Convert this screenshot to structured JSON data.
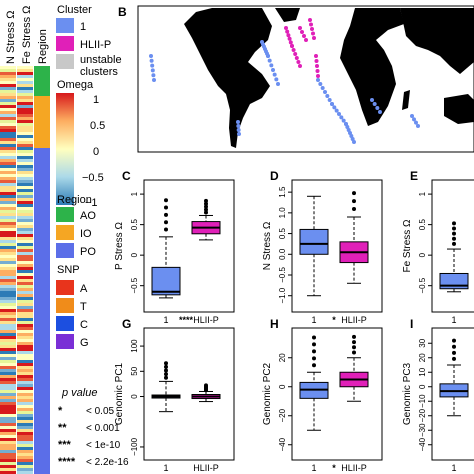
{
  "heatmap_headers": [
    "N Stress Ω",
    "Fe Stress Ω",
    "Region"
  ],
  "legend": {
    "cluster": {
      "title": "Cluster",
      "items": [
        {
          "label": "1",
          "color": "#6b8ff0"
        },
        {
          "label": "HLII-P",
          "color": "#e020b8"
        },
        {
          "label": "unstable clusters",
          "color": "#c8c8c8"
        }
      ]
    },
    "omega": {
      "title": "Omega",
      "ticks": [
        "1",
        "0.5",
        "0",
        "−0.5",
        "−1"
      ]
    },
    "region": {
      "title": "Region",
      "items": [
        {
          "label": "AO",
          "color": "#2db34a"
        },
        {
          "label": "IO",
          "color": "#f5a623"
        },
        {
          "label": "PO",
          "color": "#5b6ee8"
        }
      ]
    },
    "snp": {
      "title": "SNP",
      "items": [
        {
          "label": "A",
          "color": "#e8341c"
        },
        {
          "label": "T",
          "color": "#f08c1a"
        },
        {
          "label": "C",
          "color": "#1c4fe0"
        },
        {
          "label": "G",
          "color": "#7a2fd6"
        }
      ]
    },
    "pvalue": {
      "title": "p value",
      "items": [
        {
          "stars": "*",
          "text": "< 0.05"
        },
        {
          "stars": "**",
          "text": "< 0.001"
        },
        {
          "stars": "***",
          "text": "< 1e-10"
        },
        {
          "stars": "****",
          "text": "< 2.2e-16"
        }
      ]
    }
  },
  "panels": {
    "B": "B",
    "C": {
      "letter": "C",
      "ylabel": "P Stress Ω",
      "sig": "****",
      "ticks": [
        "1",
        "0.5",
        "0",
        "−0.5"
      ]
    },
    "D": {
      "letter": "D",
      "ylabel": "N Stress Ω",
      "sig": "*",
      "ticks": [
        "1.5",
        "1.0",
        "0.5",
        "0.0",
        "−0.5",
        "−1.0"
      ]
    },
    "E": {
      "letter": "E",
      "ylabel": "Fe Stress Ω",
      "sig": "**",
      "ticks": [
        "1",
        "0.5",
        "0",
        "−0.5"
      ]
    },
    "G": {
      "letter": "G",
      "ylabel": "Genomic PC1",
      "sig": "",
      "ticks": [
        "100",
        "50",
        "0",
        "−100"
      ]
    },
    "H": {
      "letter": "H",
      "ylabel": "Genomic PC2",
      "sig": "*",
      "ticks": [
        "20",
        "0",
        "−20",
        "−40"
      ]
    },
    "I": {
      "letter": "I",
      "ylabel": "Genomic PC3",
      "sig": "",
      "ticks": [
        "30",
        "20",
        "10",
        "0",
        "−10",
        "−20",
        "−30",
        "−40"
      ]
    }
  },
  "xcats": [
    "1",
    "HLII-P"
  ],
  "chart_data": [
    {
      "type": "box",
      "panel": "C",
      "ylabel": "P Stress Ω",
      "categories": [
        "1",
        "HLII-P"
      ],
      "series": [
        {
          "name": "1",
          "min": -0.7,
          "q1": -0.65,
          "median": -0.6,
          "q3": -0.2,
          "max": 0.3
        },
        {
          "name": "HLII-P",
          "min": 0.25,
          "q1": 0.35,
          "median": 0.45,
          "q3": 0.55,
          "max": 0.65
        }
      ]
    },
    {
      "type": "box",
      "panel": "D",
      "ylabel": "N Stress Ω",
      "categories": [
        "1",
        "HLII-P"
      ],
      "series": [
        {
          "name": "1",
          "min": -1.0,
          "q1": 0.0,
          "median": 0.25,
          "q3": 0.6,
          "max": 1.4
        },
        {
          "name": "HLII-P",
          "min": -0.7,
          "q1": -0.2,
          "median": 0.05,
          "q3": 0.3,
          "max": 0.9
        }
      ]
    },
    {
      "type": "box",
      "panel": "E",
      "ylabel": "Fe Stress Ω",
      "categories": [
        "1"
      ],
      "series": [
        {
          "name": "1",
          "min": -0.6,
          "q1": -0.55,
          "median": -0.5,
          "q3": -0.3,
          "max": 0.1
        }
      ]
    },
    {
      "type": "box",
      "panel": "G",
      "ylabel": "Genomic PC1",
      "categories": [
        "1",
        "HLII-P"
      ],
      "series": [
        {
          "name": "1",
          "min": -30,
          "q1": -3,
          "median": 0,
          "q3": 3,
          "max": 30
        },
        {
          "name": "HLII-P",
          "min": -10,
          "q1": -4,
          "median": 0,
          "q3": 4,
          "max": 10
        }
      ]
    },
    {
      "type": "box",
      "panel": "H",
      "ylabel": "Genomic PC2",
      "categories": [
        "1",
        "HLII-P"
      ],
      "series": [
        {
          "name": "1",
          "min": -30,
          "q1": -8,
          "median": -2,
          "q3": 3,
          "max": 10
        },
        {
          "name": "HLII-P",
          "min": -10,
          "q1": 0,
          "median": 5,
          "q3": 10,
          "max": 20
        }
      ]
    },
    {
      "type": "box",
      "panel": "I",
      "ylabel": "Genomic PC3",
      "categories": [
        "1"
      ],
      "series": [
        {
          "name": "1",
          "min": -20,
          "q1": -7,
          "median": -3,
          "q3": 2,
          "max": 15
        }
      ]
    }
  ]
}
